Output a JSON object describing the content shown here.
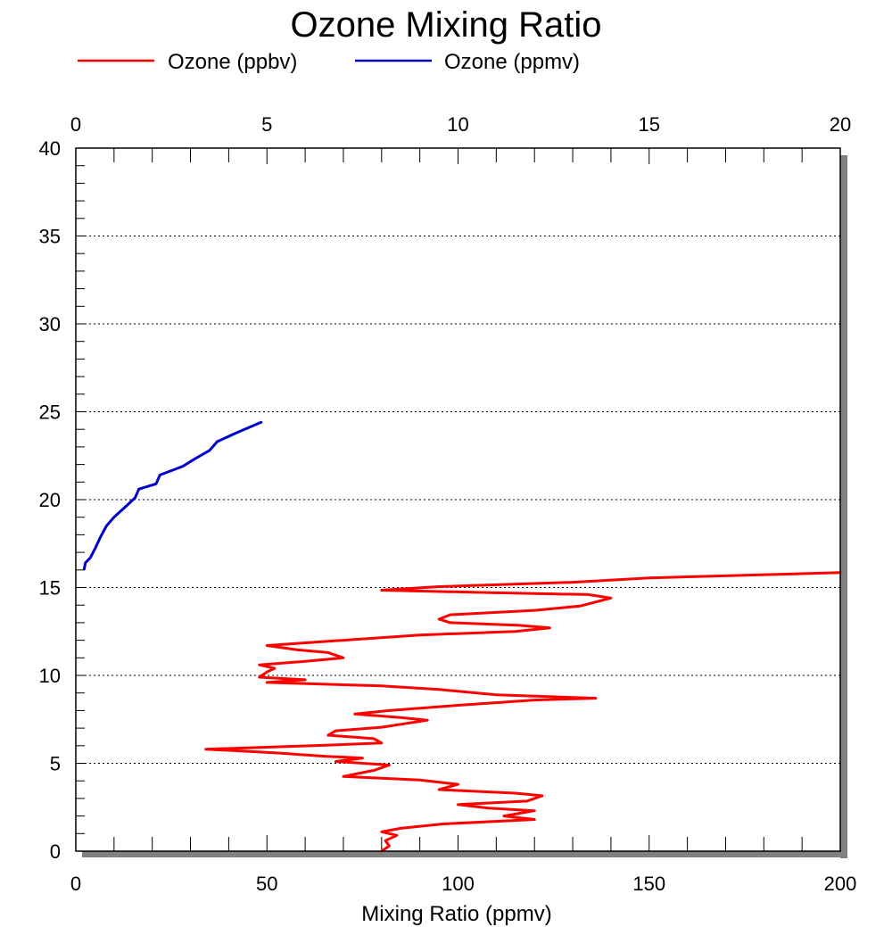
{
  "chart_data": {
    "type": "line",
    "title": "Ozone Mixing Ratio",
    "xlabel": "Mixing Ratio (ppmv)",
    "ylabel": "",
    "x_bottom": {
      "lim": [
        0,
        200
      ],
      "ticks": [
        "0",
        "50",
        "100",
        "150",
        "200"
      ]
    },
    "x_top": {
      "lim": [
        0,
        20
      ],
      "ticks": [
        "0",
        "5",
        "10",
        "15",
        "20"
      ]
    },
    "y": {
      "lim": [
        0,
        40
      ],
      "ticks": [
        "0",
        "5",
        "10",
        "15",
        "20",
        "25",
        "30",
        "35",
        "40"
      ]
    },
    "grid": "dotted horizontal at major y ticks",
    "legend": "top",
    "series": [
      {
        "name": "Ozone (ppbv)",
        "color": "#ff0000",
        "axis": "bottom",
        "points": [
          [
            80,
            0.0
          ],
          [
            82,
            0.3
          ],
          [
            81,
            0.6
          ],
          [
            84,
            0.9
          ],
          [
            80,
            1.1
          ],
          [
            85,
            1.3
          ],
          [
            96,
            1.55
          ],
          [
            120,
            1.8
          ],
          [
            112,
            2.0
          ],
          [
            120,
            2.3
          ],
          [
            108,
            2.45
          ],
          [
            100,
            2.65
          ],
          [
            118,
            2.85
          ],
          [
            122,
            3.15
          ],
          [
            115,
            3.3
          ],
          [
            95,
            3.5
          ],
          [
            100,
            3.8
          ],
          [
            90,
            4.05
          ],
          [
            70,
            4.25
          ],
          [
            78,
            4.6
          ],
          [
            82,
            4.9
          ],
          [
            68,
            5.1
          ],
          [
            75,
            5.3
          ],
          [
            65,
            5.4
          ],
          [
            52,
            5.6
          ],
          [
            34,
            5.8
          ],
          [
            62,
            6.0
          ],
          [
            80,
            6.15
          ],
          [
            78,
            6.4
          ],
          [
            66,
            6.6
          ],
          [
            68,
            6.85
          ],
          [
            80,
            7.05
          ],
          [
            92,
            7.45
          ],
          [
            85,
            7.6
          ],
          [
            73,
            7.8
          ],
          [
            82,
            8.0
          ],
          [
            100,
            8.3
          ],
          [
            120,
            8.6
          ],
          [
            136,
            8.7
          ],
          [
            110,
            8.9
          ],
          [
            95,
            9.2
          ],
          [
            80,
            9.4
          ],
          [
            50,
            9.6
          ],
          [
            60,
            9.75
          ],
          [
            48,
            9.9
          ],
          [
            50,
            10.2
          ],
          [
            52,
            10.4
          ],
          [
            48,
            10.6
          ],
          [
            60,
            10.8
          ],
          [
            70,
            11.0
          ],
          [
            66,
            11.3
          ],
          [
            58,
            11.45
          ],
          [
            50,
            11.7
          ],
          [
            70,
            12.0
          ],
          [
            90,
            12.3
          ],
          [
            115,
            12.5
          ],
          [
            124,
            12.7
          ],
          [
            116,
            12.85
          ],
          [
            98,
            13.0
          ],
          [
            95,
            13.2
          ],
          [
            98,
            13.45
          ],
          [
            120,
            13.7
          ],
          [
            132,
            13.95
          ],
          [
            140,
            14.4
          ],
          [
            134,
            14.6
          ],
          [
            110,
            14.7
          ],
          [
            80,
            14.85
          ],
          [
            95,
            15.05
          ],
          [
            130,
            15.3
          ],
          [
            150,
            15.55
          ],
          [
            200,
            15.85
          ]
        ]
      },
      {
        "name": "Ozone (ppmv)",
        "color": "#0000cc",
        "axis": "top",
        "points": [
          [
            0.22,
            16.05
          ],
          [
            0.25,
            16.4
          ],
          [
            0.38,
            16.7
          ],
          [
            0.5,
            17.2
          ],
          [
            0.65,
            17.9
          ],
          [
            0.8,
            18.5
          ],
          [
            1.0,
            19.0
          ],
          [
            1.25,
            19.5
          ],
          [
            1.55,
            20.1
          ],
          [
            1.65,
            20.6
          ],
          [
            2.1,
            20.9
          ],
          [
            2.2,
            21.4
          ],
          [
            2.8,
            21.9
          ],
          [
            3.1,
            22.3
          ],
          [
            3.5,
            22.8
          ],
          [
            3.7,
            23.3
          ],
          [
            4.2,
            23.8
          ],
          [
            4.85,
            24.4
          ]
        ]
      }
    ]
  }
}
